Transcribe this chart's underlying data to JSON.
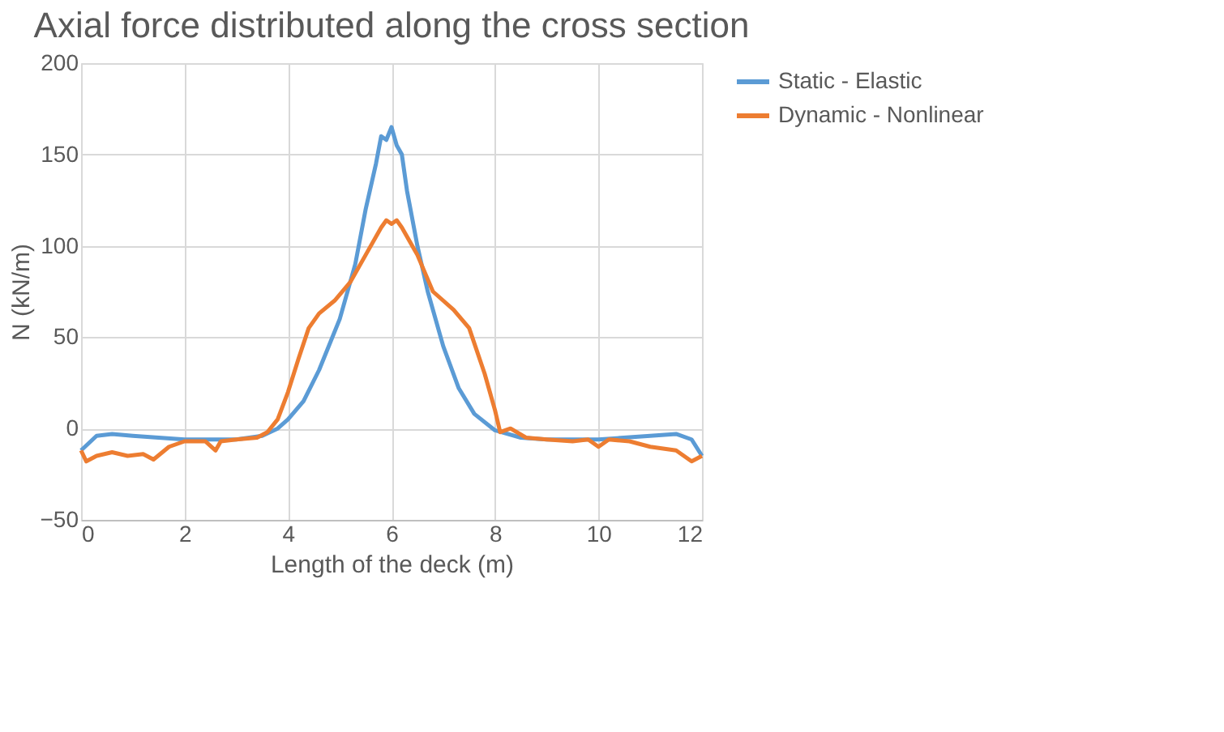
{
  "chart_data": {
    "type": "line",
    "title": "Axial force distributed along the cross section",
    "xlabel": "Length of the deck (m)",
    "ylabel": "N (kN/m)",
    "xlim": [
      0,
      12
    ],
    "xticks": [
      0,
      2,
      4,
      6,
      8,
      10,
      12
    ],
    "ylim": [
      -50,
      200
    ],
    "yticks": [
      -50,
      0,
      50,
      100,
      150,
      200
    ],
    "grid": true,
    "legend": "right",
    "marker": "none",
    "line_style": "solid",
    "series": [
      {
        "name": "Static - Elastic",
        "color": "#5b9bd5",
        "x": [
          0,
          0.3,
          0.6,
          1,
          2,
          3,
          3.5,
          3.8,
          4,
          4.3,
          4.6,
          5,
          5.3,
          5.5,
          5.7,
          5.8,
          5.9,
          6,
          6.1,
          6.2,
          6.3,
          6.5,
          6.7,
          7,
          7.3,
          7.6,
          8,
          8.5,
          9,
          10,
          11,
          11.5,
          11.8,
          12
        ],
        "values": [
          -12,
          -4,
          -3,
          -4,
          -6,
          -6,
          -4,
          0,
          5,
          15,
          32,
          60,
          90,
          120,
          145,
          160,
          158,
          165,
          155,
          150,
          130,
          100,
          75,
          45,
          22,
          8,
          -1,
          -5,
          -6,
          -6,
          -4,
          -3,
          -6,
          -15
        ]
      },
      {
        "name": "Dynamic - Nonlinear",
        "color": "#ed7d31",
        "x": [
          0,
          0.1,
          0.3,
          0.6,
          0.9,
          1.2,
          1.4,
          1.7,
          2,
          2.4,
          2.6,
          2.7,
          3,
          3.4,
          3.6,
          3.8,
          4,
          4.2,
          4.4,
          4.6,
          4.9,
          5.2,
          5.5,
          5.8,
          5.9,
          6,
          6.1,
          6.2,
          6.5,
          6.8,
          7.2,
          7.5,
          7.8,
          8,
          8.1,
          8.3,
          8.6,
          9,
          9.5,
          9.8,
          10,
          10.2,
          10.6,
          11,
          11.5,
          11.8,
          12
        ],
        "values": [
          -12,
          -18,
          -15,
          -13,
          -15,
          -14,
          -17,
          -10,
          -7,
          -7,
          -12,
          -7,
          -6,
          -5,
          -2,
          5,
          20,
          38,
          55,
          63,
          70,
          80,
          95,
          110,
          114,
          112,
          114,
          110,
          95,
          75,
          65,
          55,
          30,
          10,
          -2,
          0,
          -5,
          -6,
          -7,
          -6,
          -10,
          -6,
          -7,
          -10,
          -12,
          -18,
          -15
        ]
      }
    ]
  }
}
